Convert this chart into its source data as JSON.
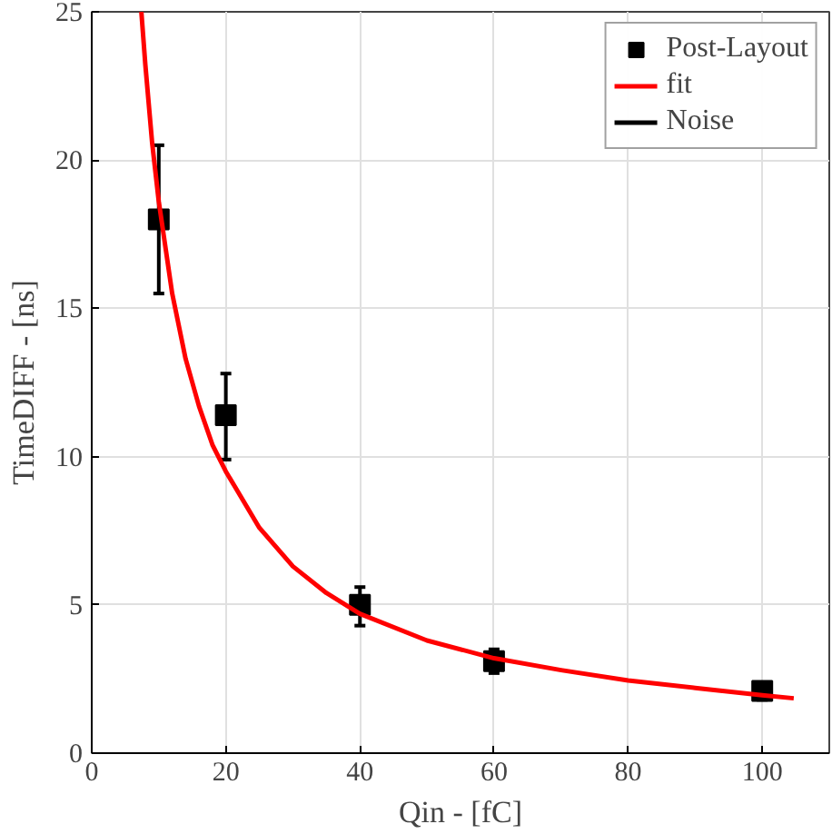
{
  "chart_data": {
    "type": "scatter",
    "xlabel": "Qin - [fC]",
    "ylabel": "TimeDIFF - [ns]",
    "xlim": [
      0,
      110
    ],
    "ylim": [
      0,
      25
    ],
    "xticks": [
      0,
      20,
      40,
      60,
      80,
      100
    ],
    "yticks": [
      0,
      5,
      10,
      15,
      20,
      25
    ],
    "grid": true,
    "legend": "top right",
    "marker": "square",
    "annotations": [
      "Noise"
    ],
    "series": [
      {
        "name": "Post-Layout",
        "color": "#000000",
        "x": [
          10,
          20,
          40,
          60,
          100
        ],
        "values": [
          18.0,
          11.4,
          5.0,
          3.1,
          2.1
        ],
        "errors": [
          [
            15.5,
            20.5
          ],
          [
            9.9,
            12.8
          ],
          [
            4.3,
            5.6
          ],
          [
            2.7,
            3.5
          ],
          [
            1.8,
            2.3
          ]
        ]
      },
      {
        "name": "fit",
        "type": "line",
        "marker": "none",
        "line_style": "solid",
        "color": "#ff0000",
        "x": [
          7.4,
          8,
          9,
          10,
          12,
          14,
          16,
          18,
          20,
          25,
          30,
          35,
          40,
          50,
          60,
          70,
          80,
          90,
          100,
          104.7
        ],
        "values": [
          25,
          23.2,
          20.6,
          18.6,
          15.5,
          13.3,
          11.7,
          10.4,
          9.5,
          7.6,
          6.3,
          5.4,
          4.7,
          3.8,
          3.2,
          2.8,
          2.45,
          2.2,
          1.95,
          1.85
        ]
      }
    ]
  }
}
